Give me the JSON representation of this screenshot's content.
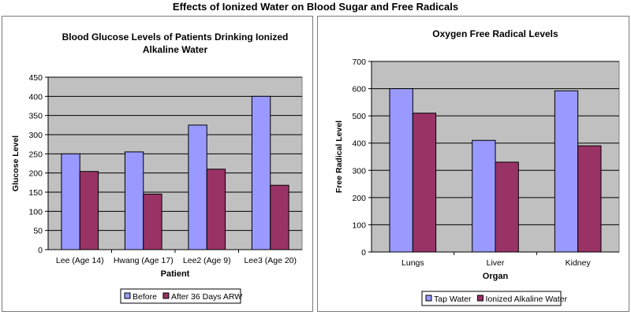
{
  "page": {
    "title": "Effects of Ionized Water on Blood Sugar and Free Radicals"
  },
  "chart_data": [
    {
      "type": "bar",
      "title": "Blood Glucose Levels of Patients Drinking Ionized Alkaline Water",
      "title_lines": [
        "Blood Glucose Levels of Patients Drinking Ionized",
        "Alkaline Water"
      ],
      "xlabel": "Patient",
      "ylabel": "Glucose Level",
      "categories": [
        "Lee (Age 14)",
        "Hwang  (Age 17)",
        "Lee2 (Age 9)",
        "Lee3 (Age 20)"
      ],
      "series": [
        {
          "name": "Before",
          "color": "#9999ff",
          "values": [
            250,
            255,
            325,
            400
          ]
        },
        {
          "name": "After 36 Days ARW",
          "color": "#993366",
          "values": [
            204,
            145,
            210,
            168
          ]
        }
      ],
      "ylim": [
        0,
        450
      ],
      "yticks": [
        0,
        50,
        100,
        150,
        200,
        250,
        300,
        350,
        400,
        450
      ],
      "grid": true,
      "plot_bg": "#c0c0c0",
      "legend_position": "bottom"
    },
    {
      "type": "bar",
      "title": "Oxygen Free Radical Levels",
      "title_lines": [
        "Oxygen Free Radical Levels"
      ],
      "xlabel": "Organ",
      "ylabel": "Free Radical Level",
      "categories": [
        "Lungs",
        "Liver",
        "Kidney"
      ],
      "series": [
        {
          "name": "Tap Water",
          "color": "#9999ff",
          "values": [
            600,
            410,
            592
          ]
        },
        {
          "name": "Ionized Alkaline Water",
          "color": "#993366",
          "values": [
            510,
            330,
            390
          ]
        }
      ],
      "ylim": [
        0,
        700
      ],
      "yticks": [
        0,
        100,
        200,
        300,
        400,
        500,
        600,
        700
      ],
      "grid": true,
      "plot_bg": "#c0c0c0",
      "legend_position": "bottom"
    }
  ]
}
